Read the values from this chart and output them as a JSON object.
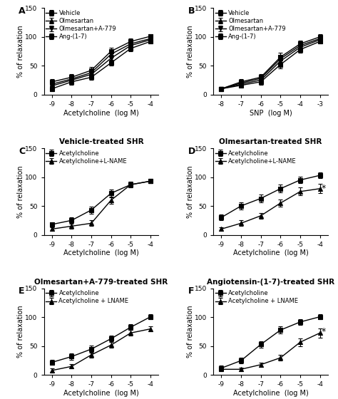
{
  "panel_A": {
    "label": "A",
    "title": "",
    "xlabel": "Acetylcholine  (log M)",
    "ylabel": "% of relaxation",
    "xticks": [
      -9,
      -8,
      -7,
      -6,
      -5,
      -4
    ],
    "ylim": [
      0,
      150
    ],
    "yticks": [
      0,
      50,
      100,
      150
    ],
    "series": [
      {
        "name": "Vehicle",
        "x": [
          -9,
          -8,
          -7,
          -6,
          -5,
          -4
        ],
        "y": [
          22,
          30,
          42,
          75,
          92,
          101
        ],
        "yerr": [
          5,
          5,
          6,
          6,
          5,
          4
        ],
        "marker": "s",
        "filled": true
      },
      {
        "name": "Olmesartan",
        "x": [
          -9,
          -8,
          -7,
          -6,
          -5,
          -4
        ],
        "y": [
          18,
          27,
          38,
          70,
          88,
          97
        ],
        "yerr": [
          4,
          5,
          5,
          5,
          5,
          4
        ],
        "marker": "^",
        "filled": true
      },
      {
        "name": "Olmesartan+A-779",
        "x": [
          -9,
          -8,
          -7,
          -6,
          -5,
          -4
        ],
        "y": [
          15,
          25,
          35,
          63,
          85,
          95
        ],
        "yerr": [
          4,
          5,
          6,
          5,
          5,
          3
        ],
        "marker": "v",
        "filled": true
      },
      {
        "name": "Ang-(1-7)",
        "x": [
          -9,
          -8,
          -7,
          -6,
          -5,
          -4
        ],
        "y": [
          10,
          22,
          30,
          55,
          80,
          92
        ],
        "yerr": [
          4,
          5,
          5,
          5,
          5,
          4
        ],
        "marker": "s",
        "filled": true
      }
    ]
  },
  "panel_B": {
    "label": "B",
    "title": "",
    "xlabel": "SNP  (log M)",
    "ylabel": "% of relaxation",
    "xticks": [
      -8,
      -7,
      -6,
      -5,
      -4,
      -3
    ],
    "ylim": [
      0,
      150
    ],
    "yticks": [
      0,
      50,
      100,
      150
    ],
    "series": [
      {
        "name": "Vehicle",
        "x": [
          -8,
          -7,
          -6,
          -5,
          -4,
          -3
        ],
        "y": [
          10,
          22,
          30,
          65,
          88,
          100
        ],
        "yerr": [
          3,
          5,
          5,
          8,
          5,
          4
        ],
        "marker": "s",
        "filled": true
      },
      {
        "name": "Olmesartan",
        "x": [
          -8,
          -7,
          -6,
          -5,
          -4,
          -3
        ],
        "y": [
          10,
          20,
          28,
          62,
          85,
          97
        ],
        "yerr": [
          3,
          4,
          5,
          7,
          5,
          4
        ],
        "marker": "^",
        "filled": true
      },
      {
        "name": "Olmesartan+A-779",
        "x": [
          -8,
          -7,
          -6,
          -5,
          -4,
          -3
        ],
        "y": [
          10,
          18,
          25,
          58,
          82,
          95
        ],
        "yerr": [
          3,
          4,
          5,
          7,
          5,
          4
        ],
        "marker": "v",
        "filled": true
      },
      {
        "name": "Ang-(1-7)",
        "x": [
          -8,
          -7,
          -6,
          -5,
          -4,
          -3
        ],
        "y": [
          10,
          16,
          22,
          52,
          78,
          92
        ],
        "yerr": [
          3,
          4,
          5,
          7,
          5,
          3
        ],
        "marker": "s",
        "filled": true
      }
    ]
  },
  "panel_C": {
    "label": "C",
    "title": "Vehicle-treated SHR",
    "xlabel": "Acetylcholine  (log M)",
    "ylabel": "% of relaxation",
    "xticks": [
      -9,
      -8,
      -7,
      -6,
      -5,
      -4
    ],
    "ylim": [
      0,
      150
    ],
    "yticks": [
      0,
      50,
      100,
      150
    ],
    "series": [
      {
        "name": "Acetylcholine",
        "x": [
          -9,
          -8,
          -7,
          -6,
          -5,
          -4
        ],
        "y": [
          18,
          25,
          43,
          72,
          87,
          93
        ],
        "yerr": [
          4,
          5,
          6,
          7,
          5,
          4
        ],
        "marker": "s",
        "filled": true
      },
      {
        "name": "Acetylcholine+L-NAME",
        "x": [
          -9,
          -8,
          -7,
          -6,
          -5,
          -4
        ],
        "y": [
          10,
          15,
          20,
          60,
          87,
          93
        ],
        "yerr": [
          3,
          4,
          5,
          6,
          5,
          4
        ],
        "marker": "^",
        "filled": true
      }
    ]
  },
  "panel_D": {
    "label": "D",
    "title": "Olmesartan-treated SHR",
    "xlabel": "Acetylcholine  (log M)",
    "ylabel": "% of relaxation",
    "xticks": [
      -9,
      -8,
      -7,
      -6,
      -5,
      -4
    ],
    "ylim": [
      0,
      150
    ],
    "yticks": [
      0,
      50,
      100,
      150
    ],
    "star_x": -4,
    "star_y": 80,
    "series": [
      {
        "name": "Acetylcholine",
        "x": [
          -9,
          -8,
          -7,
          -6,
          -5,
          -4
        ],
        "y": [
          30,
          50,
          63,
          80,
          95,
          103
        ],
        "yerr": [
          5,
          6,
          7,
          7,
          6,
          5
        ],
        "marker": "s",
        "filled": true
      },
      {
        "name": "Acetylcholine+L-NAME",
        "x": [
          -9,
          -8,
          -7,
          -6,
          -5,
          -4
        ],
        "y": [
          10,
          20,
          33,
          55,
          75,
          80
        ],
        "yerr": [
          3,
          5,
          5,
          6,
          7,
          8
        ],
        "marker": "^",
        "filled": true
      }
    ]
  },
  "panel_E": {
    "label": "E",
    "title": "Olmesartan+A-779-treated SHR",
    "xlabel": "Acetylcholine  (log M)",
    "ylabel": "% of relaxation",
    "xticks": [
      -9,
      -8,
      -7,
      -6,
      -5,
      -4
    ],
    "ylim": [
      0,
      150
    ],
    "yticks": [
      0,
      50,
      100,
      150
    ],
    "series": [
      {
        "name": "Acetylcholine",
        "x": [
          -9,
          -8,
          -7,
          -6,
          -5,
          -4
        ],
        "y": [
          22,
          32,
          45,
          63,
          83,
          101
        ],
        "yerr": [
          4,
          5,
          6,
          5,
          5,
          4
        ],
        "marker": "s",
        "filled": true
      },
      {
        "name": "Acetylcholine + LNAME",
        "x": [
          -9,
          -8,
          -7,
          -6,
          -5,
          -4
        ],
        "y": [
          8,
          15,
          35,
          52,
          73,
          80
        ],
        "yerr": [
          3,
          4,
          5,
          5,
          5,
          4
        ],
        "marker": "^",
        "filled": true
      }
    ]
  },
  "panel_F": {
    "label": "F",
    "title": "Angiotensin-(1-7)-treated SHR",
    "xlabel": "Acetylcholine  (log M)",
    "ylabel": "% of relaxation",
    "xticks": [
      -9,
      -8,
      -7,
      -6,
      -5,
      -4
    ],
    "ylim": [
      0,
      150
    ],
    "yticks": [
      0,
      50,
      100,
      150
    ],
    "star_x": -4,
    "star_y": 75,
    "series": [
      {
        "name": "Acetylcholine",
        "x": [
          -9,
          -8,
          -7,
          -6,
          -5,
          -4
        ],
        "y": [
          12,
          25,
          53,
          78,
          92,
          101
        ],
        "yerr": [
          4,
          5,
          6,
          6,
          5,
          4
        ],
        "marker": "s",
        "filled": true
      },
      {
        "name": "Acetylcholine + LNAME",
        "x": [
          -9,
          -8,
          -7,
          -6,
          -5,
          -4
        ],
        "y": [
          10,
          10,
          18,
          30,
          57,
          73
        ],
        "yerr": [
          3,
          3,
          4,
          5,
          7,
          8
        ],
        "marker": "^",
        "filled": true
      }
    ]
  },
  "line_color": "#000000",
  "marker_size": 4,
  "capsize": 2,
  "elinewidth": 0.8,
  "linewidth": 1.0
}
